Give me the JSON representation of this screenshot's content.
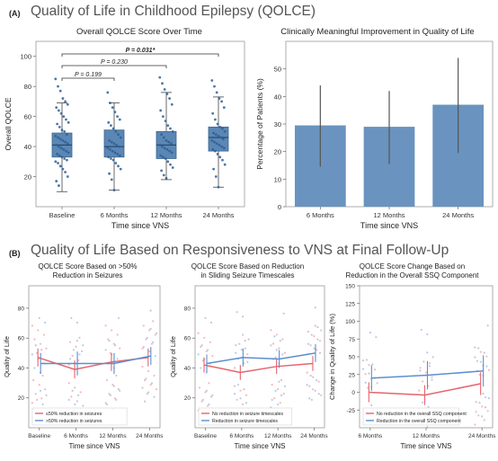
{
  "section_a": {
    "letter": "(A)",
    "title": "Quality of Life in Childhood Epilepsy (QOLCE)"
  },
  "section_b": {
    "letter": "(B)",
    "title": "Quality of Life Based on Responsiveness to VNS at Final Follow-Up"
  },
  "colors": {
    "box": "#5b87b5",
    "bar": "#6a93bf",
    "red": "#e8636b",
    "blue": "#5a8fd0",
    "errbar": "#555555",
    "point": "#2e5f95"
  },
  "chart_data": [
    {
      "id": "a1",
      "type": "box",
      "title": "Overall QOLCE Score Over Time",
      "xlabel": "Time since VNS",
      "ylabel": "Overall QOLCE",
      "categories": [
        "Baseline",
        "6 Months",
        "12 Months",
        "24 Months"
      ],
      "ylim": [
        0,
        110
      ],
      "yticks": [
        20,
        40,
        60,
        80,
        100
      ],
      "boxes": [
        {
          "whisker_low": 10,
          "q1": 33,
          "median": 41,
          "q3": 49,
          "whisker_high": 69
        },
        {
          "whisker_low": 11,
          "q1": 33,
          "median": 40,
          "q3": 51,
          "whisker_high": 69
        },
        {
          "whisker_low": 18,
          "q1": 32,
          "median": 41,
          "q3": 50,
          "whisker_high": 76
        },
        {
          "whisker_low": 13,
          "q1": 37,
          "median": 46,
          "q3": 53,
          "whisker_high": 73
        }
      ],
      "points": [
        [
          85,
          80,
          77,
          72,
          70,
          68,
          66,
          64,
          62,
          60,
          58,
          56,
          55,
          53,
          51,
          50,
          48,
          47,
          46,
          45,
          44,
          43,
          42,
          41,
          40,
          39,
          38,
          37,
          36,
          35,
          34,
          33,
          32,
          31,
          30,
          29,
          27,
          25,
          23,
          20,
          17,
          14
        ],
        [
          76,
          69,
          66,
          63,
          60,
          58,
          56,
          54,
          52,
          50,
          48,
          46,
          44,
          43,
          42,
          41,
          40,
          39,
          38,
          37,
          36,
          35,
          34,
          33,
          32,
          31,
          29,
          27,
          25,
          22,
          18,
          11
        ],
        [
          86,
          82,
          78,
          75,
          72,
          68,
          64,
          60,
          57,
          54,
          52,
          50,
          48,
          46,
          44,
          43,
          42,
          41,
          40,
          39,
          38,
          37,
          36,
          34,
          33,
          32,
          30,
          28,
          26,
          24,
          21,
          19
        ],
        [
          84,
          80,
          76,
          72,
          70,
          66,
          62,
          58,
          55,
          53,
          52,
          50,
          49,
          48,
          47,
          46,
          45,
          44,
          43,
          42,
          41,
          40,
          39,
          38,
          37,
          35,
          33,
          31,
          28,
          25,
          20,
          13
        ]
      ],
      "brackets": [
        {
          "from": 0,
          "to": 3,
          "label": "P = 0.031*"
        },
        {
          "from": 0,
          "to": 2,
          "label": "P = 0.230"
        },
        {
          "from": 0,
          "to": 1,
          "label": "P = 0.199"
        }
      ]
    },
    {
      "id": "a2",
      "type": "bar",
      "title": "Clinically Meaningful Improvement in Quality of Life",
      "xlabel": "Time since VNS",
      "ylabel": "Percentage of Patients (%)",
      "categories": [
        "6 Months",
        "12 Months",
        "24 Months"
      ],
      "values": [
        29.5,
        29,
        37
      ],
      "err_low": [
        14.5,
        15.5,
        19.5
      ],
      "err_high": [
        44,
        42,
        54
      ],
      "ylim": [
        0,
        60
      ],
      "yticks": [
        0,
        10,
        20,
        30,
        40,
        50
      ]
    },
    {
      "id": "b1",
      "type": "line",
      "title_lines": [
        "QOLCE Score Based on >50%",
        "Reduction in Seizures"
      ],
      "xlabel": "Time since VNS",
      "ylabel": "Quality of Life",
      "categories": [
        "Baseline",
        "6 Months",
        "12 Months",
        "24 Months"
      ],
      "ylim": [
        0,
        95
      ],
      "yticks": [
        20,
        40,
        60,
        80
      ],
      "series": [
        {
          "name": "≤50% reduction in seizures",
          "color": "#e8636b",
          "values": [
            47,
            39,
            44,
            47
          ],
          "err": [
            6,
            6,
            6,
            6
          ]
        },
        {
          "name": ">50% reduction in seizures",
          "color": "#5a8fd0",
          "values": [
            43,
            43,
            43,
            48
          ],
          "err": [
            7,
            8,
            7,
            6
          ]
        }
      ],
      "legend": "lower-left"
    },
    {
      "id": "b2",
      "type": "line",
      "title_lines": [
        "QOLCE Score Based on Reduction",
        "in Sliding Seizure Timescales"
      ],
      "xlabel": "Time since VNS",
      "ylabel": "Quality of Life",
      "categories": [
        "Baseline",
        "6 Months",
        "12 Months",
        "24 Months"
      ],
      "ylim": [
        0,
        95
      ],
      "yticks": [
        20,
        40,
        60,
        80
      ],
      "series": [
        {
          "name": "No reduction in seizure timescales",
          "color": "#e8636b",
          "values": [
            42,
            37,
            41,
            43
          ],
          "err": [
            5,
            5,
            5,
            5
          ]
        },
        {
          "name": "Reduction in seizure timescales",
          "color": "#5a8fd0",
          "values": [
            43,
            47,
            46,
            50
          ],
          "err": [
            6,
            6,
            6,
            6
          ]
        }
      ],
      "legend": "lower-left"
    },
    {
      "id": "b3",
      "type": "line",
      "title_lines": [
        "QOLCE Score Change Based on",
        "Reduction in the Overall SSQ Component"
      ],
      "xlabel": "Time since VNS",
      "ylabel": "Change in Quality of Life (%)",
      "categories": [
        "6 Months",
        "12 Months",
        "24 Months"
      ],
      "ylim": [
        -50,
        150
      ],
      "yticks": [
        -25,
        0,
        25,
        50,
        75,
        100,
        125,
        150
      ],
      "series": [
        {
          "name": "No reduction in the overall SSQ component",
          "color": "#e8636b",
          "values": [
            0,
            -4,
            12
          ],
          "err": [
            14,
            14,
            16
          ]
        },
        {
          "name": "Reduction in the overall SSQ component",
          "color": "#5a8fd0",
          "values": [
            20,
            24,
            30
          ],
          "err": [
            18,
            20,
            22
          ]
        }
      ],
      "legend": "lower-left"
    }
  ]
}
